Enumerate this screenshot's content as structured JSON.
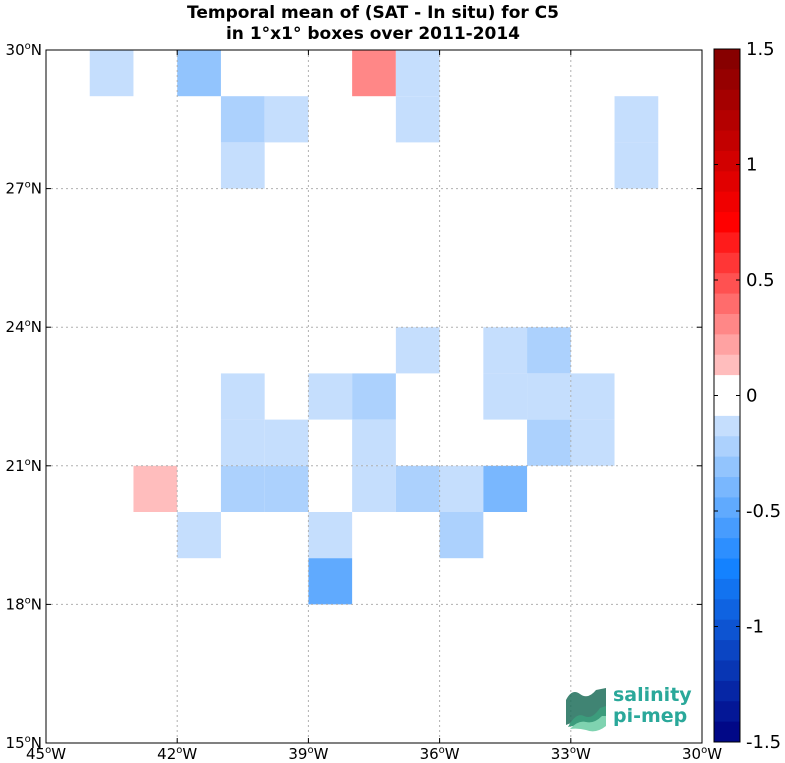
{
  "chart_data": {
    "type": "heatmap",
    "title": [
      "Temporal mean of (SAT - In situ) for C5",
      "in 1°x1° boxes over 2011-2014"
    ],
    "xlim": [
      -45,
      -30
    ],
    "ylim": [
      15,
      30
    ],
    "grid": true,
    "x_ticks": [
      -45,
      -42,
      -39,
      -36,
      -33,
      -30
    ],
    "y_ticks": [
      15,
      18,
      21,
      24,
      27,
      30
    ],
    "x_tick_labels": [
      {
        "deg": "45",
        "sup": "o",
        "dir": "W"
      },
      {
        "deg": "42",
        "sup": "o",
        "dir": "W"
      },
      {
        "deg": "39",
        "sup": "o",
        "dir": "W"
      },
      {
        "deg": "36",
        "sup": "o",
        "dir": "W"
      },
      {
        "deg": "33",
        "sup": "o",
        "dir": "W"
      },
      {
        "deg": "30",
        "sup": "o",
        "dir": "W"
      }
    ],
    "y_tick_labels": [
      {
        "deg": "15",
        "sup": "o",
        "dir": "N"
      },
      {
        "deg": "18",
        "sup": "o",
        "dir": "N"
      },
      {
        "deg": "21",
        "sup": "o",
        "dir": "N"
      },
      {
        "deg": "24",
        "sup": "o",
        "dir": "N"
      },
      {
        "deg": "27",
        "sup": "o",
        "dir": "N"
      },
      {
        "deg": "30",
        "sup": "o",
        "dir": "N"
      }
    ],
    "colorbar": {
      "min": -1.5,
      "max": 1.5,
      "levels": 34,
      "ticks": [
        1.5,
        1,
        0.5,
        0,
        -0.5,
        -1,
        -1.5
      ],
      "tick_labels": [
        "1.5",
        "1",
        "0.5",
        "0",
        "-0.5",
        "-1",
        "-1.5"
      ]
    },
    "cells": [
      {
        "lon": -44,
        "lat": 29,
        "value": -0.1
      },
      {
        "lon": -42,
        "lat": 29,
        "value": -0.35
      },
      {
        "lon": -38,
        "lat": 29,
        "value": 0.3
      },
      {
        "lon": -37,
        "lat": 29,
        "value": -0.1
      },
      {
        "lon": -41,
        "lat": 28,
        "value": -0.25
      },
      {
        "lon": -40,
        "lat": 28,
        "value": -0.15
      },
      {
        "lon": -37,
        "lat": 28,
        "value": -0.1
      },
      {
        "lon": -32,
        "lat": 28,
        "value": -0.1
      },
      {
        "lon": -41,
        "lat": 27,
        "value": -0.1
      },
      {
        "lon": -32,
        "lat": 27,
        "value": -0.1
      },
      {
        "lon": -37,
        "lat": 23,
        "value": -0.1
      },
      {
        "lon": -35,
        "lat": 23,
        "value": -0.1
      },
      {
        "lon": -34,
        "lat": 23,
        "value": -0.25
      },
      {
        "lon": -41,
        "lat": 22,
        "value": -0.1
      },
      {
        "lon": -39,
        "lat": 22,
        "value": -0.15
      },
      {
        "lon": -38,
        "lat": 22,
        "value": -0.25
      },
      {
        "lon": -35,
        "lat": 22,
        "value": -0.1
      },
      {
        "lon": -34,
        "lat": 22,
        "value": -0.1
      },
      {
        "lon": -33,
        "lat": 22,
        "value": -0.1
      },
      {
        "lon": -41,
        "lat": 21,
        "value": -0.1
      },
      {
        "lon": -40,
        "lat": 21,
        "value": -0.1
      },
      {
        "lon": -38,
        "lat": 21,
        "value": -0.15
      },
      {
        "lon": -34,
        "lat": 21,
        "value": -0.25
      },
      {
        "lon": -33,
        "lat": 21,
        "value": -0.1
      },
      {
        "lon": -43,
        "lat": 20,
        "value": 0.15
      },
      {
        "lon": -41,
        "lat": 20,
        "value": -0.25
      },
      {
        "lon": -40,
        "lat": 20,
        "value": -0.25
      },
      {
        "lon": -38,
        "lat": 20,
        "value": -0.1
      },
      {
        "lon": -37,
        "lat": 20,
        "value": -0.25
      },
      {
        "lon": -36,
        "lat": 20,
        "value": -0.1
      },
      {
        "lon": -35,
        "lat": 20,
        "value": -0.4
      },
      {
        "lon": -42,
        "lat": 19,
        "value": -0.1
      },
      {
        "lon": -39,
        "lat": 19,
        "value": -0.1
      },
      {
        "lon": -36,
        "lat": 19,
        "value": -0.25
      },
      {
        "lon": -39,
        "lat": 18,
        "value": -0.5
      }
    ]
  },
  "logo": {
    "line1": "salinity",
    "line2": "pi-mep",
    "colors": {
      "text": "#2aa89a",
      "wave_dark": "#1f6f5a",
      "wave_light": "#7fd3b0"
    }
  }
}
